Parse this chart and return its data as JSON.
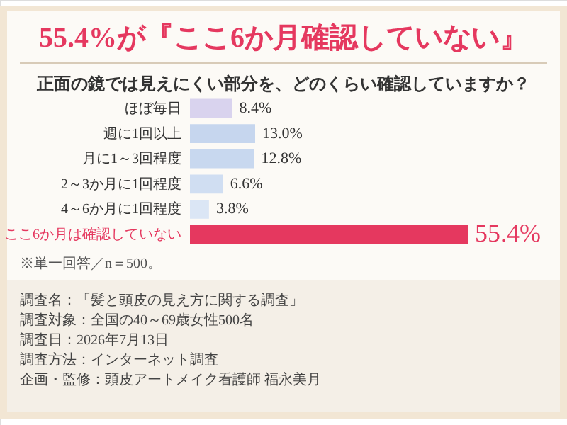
{
  "chart_data": {
    "type": "bar",
    "orientation": "horizontal",
    "title": "55.4%が『ここ6か月確認していない』",
    "subtitle": "正面の鏡では見えにくい部分を、どのくらい確認していますか？",
    "categories": [
      "ほぼ毎日",
      "週に1回以上",
      "月に1～3回程度",
      "2～3か月に1回程度",
      "4～6か月に1回程度",
      "ここ6か月は確認していない"
    ],
    "values": [
      8.4,
      13.0,
      12.8,
      6.6,
      3.8,
      55.4
    ],
    "colors": [
      "#d9d3ee",
      "#c6d6ee",
      "#c8d8ef",
      "#d0def2",
      "#dbe6f5",
      "#e5385f"
    ],
    "value_labels": [
      "8.4%",
      "13.0%",
      "12.8%",
      "6.6%",
      "3.8%",
      "55.4%"
    ],
    "annotations": [
      "※単一回答／n＝500。",
      "調査名：「髪と頭皮の見え方に関する調査」",
      "調査対象：全国の40～69歳女性500名",
      "調査日：2026年7月13日",
      "調査方法：インターネット調査",
      "企画・監修：頭皮アートメイク看護師 福永美月"
    ]
  }
}
